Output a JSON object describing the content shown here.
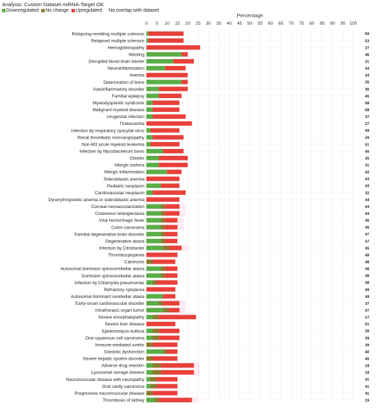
{
  "header": {
    "analysis_title": "Analysis: Custom Dataset miRNA-Target OK",
    "legend": [
      {
        "label": "Downregulated",
        "color": "#5aae46"
      },
      {
        "label": "No change",
        "color": "#8c7a2e"
      },
      {
        "label": "Upregulated",
        "color": "#e8413a"
      },
      {
        "label": "No overlap with dataset",
        "color": "#ffffff"
      }
    ]
  },
  "chart_data": {
    "type": "bar",
    "orientation": "horizontal",
    "stacked": true,
    "xlabel": "Percentage",
    "xlim": [
      0,
      100
    ],
    "xticks": [
      0,
      5,
      10,
      15,
      20,
      25,
      30,
      35,
      40,
      45,
      50,
      55,
      60,
      65,
      70,
      75,
      80,
      85,
      90,
      95,
      100
    ],
    "grid": true,
    "colors": {
      "down": "#5aae46",
      "nochange": "#8c7a2e",
      "up": "#e8413a",
      "highlight": "#fde8f3"
    },
    "rows": [
      {
        "label": "Relapsing-remitting multiple sclerosis",
        "down": 1,
        "nochange": 0,
        "up": 17,
        "count": "59"
      },
      {
        "label": "Relapsed multiple sclerosis",
        "down": 1,
        "nochange": 0,
        "up": 17,
        "count": "53"
      },
      {
        "label": "Hemoglobinopathy",
        "down": 0,
        "nochange": 0,
        "up": 26,
        "count": "27"
      },
      {
        "label": "Wasting",
        "down": 17,
        "nochange": 0,
        "up": 3,
        "count": "46"
      },
      {
        "label": "Disrupted blood brain barrier",
        "down": 13,
        "nochange": 0,
        "up": 10,
        "count": "31"
      },
      {
        "label": "Neuroinflammation",
        "down": 9,
        "nochange": 0,
        "up": 10,
        "count": "44"
      },
      {
        "label": "Anemia",
        "down": 0,
        "nochange": 0,
        "up": 20,
        "count": "34"
      },
      {
        "label": "Deterioration of bone",
        "down": 17,
        "nochange": 0,
        "up": 3,
        "count": "35"
      },
      {
        "label": "Autoinflammatory disorder",
        "down": 6,
        "nochange": 0,
        "up": 14,
        "count": "35"
      },
      {
        "label": "Familial epilepsy",
        "down": 6,
        "nochange": 0,
        "up": 11,
        "count": "46"
      },
      {
        "label": "Myelodysplastic syndrome",
        "down": 3,
        "nochange": 0,
        "up": 13,
        "count": "58"
      },
      {
        "label": "Malignant myeloid disease",
        "down": 3,
        "nochange": 0,
        "up": 13,
        "count": "58"
      },
      {
        "label": "Urogenital infection",
        "down": 3,
        "nochange": 0,
        "up": 16,
        "count": "37"
      },
      {
        "label": "Thalassemia",
        "down": 0,
        "nochange": 0,
        "up": 22,
        "count": "27"
      },
      {
        "label": "Infection by respiratory syncytial virus",
        "down": 2,
        "nochange": 0,
        "up": 14,
        "count": "49"
      },
      {
        "label": "Renal thrombotic microangiopathy",
        "down": 3,
        "nochange": 0,
        "up": 15,
        "count": "39"
      },
      {
        "label": "Non-M3 acute myeloid leukemia",
        "down": 2,
        "nochange": 0,
        "up": 14,
        "count": "51"
      },
      {
        "label": "Infection by Mycobacterium bovis",
        "down": 8,
        "nochange": 0,
        "up": 10,
        "count": "40"
      },
      {
        "label": "Osteitis",
        "down": 6,
        "nochange": 0,
        "up": 14,
        "count": "35"
      },
      {
        "label": "Allergic asthma",
        "down": 6,
        "nochange": 0,
        "up": 14,
        "count": "31"
      },
      {
        "label": "Allergic inflammation",
        "down": 10,
        "nochange": 0,
        "up": 7,
        "count": "42"
      },
      {
        "label": "Sideroblastic anemia",
        "down": 0,
        "nochange": 0,
        "up": 16,
        "count": "43"
      },
      {
        "label": "Pediatric neoplasm",
        "down": 7,
        "nochange": 0,
        "up": 9,
        "count": "43"
      },
      {
        "label": "Cardiovascular neoplasm",
        "down": 3,
        "nochange": 0,
        "up": 16,
        "count": "32"
      },
      {
        "label": "Dyserythropoietic anemia or sideroblastic anemia",
        "down": 0,
        "nochange": 0,
        "up": 16,
        "count": "44"
      },
      {
        "label": "Corneal neovascularization",
        "down": 7,
        "nochange": 2,
        "up": 7,
        "count": "44",
        "highlight": true
      },
      {
        "label": "Cutaneous telangiectasia",
        "down": 7,
        "nochange": 2,
        "up": 7,
        "count": "44",
        "highlight": true
      },
      {
        "label": "Viral hemorrhagic fever",
        "down": 7,
        "nochange": 2,
        "up": 6,
        "count": "45",
        "highlight": true
      },
      {
        "label": "Colon carcinoma",
        "down": 7,
        "nochange": 2,
        "up": 6,
        "count": "45",
        "highlight": true
      },
      {
        "label": "Familial degenerative brain disorder",
        "down": 7,
        "nochange": 2,
        "up": 6,
        "count": "47"
      },
      {
        "label": "Degenerative ataxia",
        "down": 7,
        "nochange": 2,
        "up": 6,
        "count": "47"
      },
      {
        "label": "Infection by Citrobacter",
        "down": 8,
        "nochange": 3,
        "up": 6,
        "count": "36",
        "highlight": true
      },
      {
        "label": "Thrombocytopenia",
        "down": 0,
        "nochange": 0,
        "up": 15,
        "count": "48"
      },
      {
        "label": "Calcinosis",
        "down": 0,
        "nochange": 3,
        "up": 11,
        "count": "48"
      },
      {
        "label": "Autosomal dominant spinocerebellar ataxia",
        "down": 7,
        "nochange": 2,
        "up": 6,
        "count": "48"
      },
      {
        "label": "Dominant spinocerebellar ataxia",
        "down": 7,
        "nochange": 2,
        "up": 6,
        "count": "48"
      },
      {
        "label": "Infection by Chlamydia pneumoniae",
        "down": 3,
        "nochange": 2,
        "up": 10,
        "count": "48"
      },
      {
        "label": "Refractory cytopenia",
        "down": 0,
        "nochange": 0,
        "up": 14,
        "count": "49"
      },
      {
        "label": "Autosomal dominant cerebellar ataxia",
        "down": 8,
        "nochange": 0,
        "up": 6,
        "count": "49"
      },
      {
        "label": "Early-onset cardiovascular disorder",
        "down": 6,
        "nochange": 2,
        "up": 8,
        "count": "37",
        "highlight": true
      },
      {
        "label": "Intrathoracic organ tumor",
        "down": 8,
        "nochange": 3,
        "up": 5,
        "count": "37",
        "highlight": true
      },
      {
        "label": "Severe encephalopathy",
        "down": 3,
        "nochange": 3,
        "up": 18,
        "count": "17"
      },
      {
        "label": "Severe liver disease",
        "down": 0,
        "nochange": 0,
        "up": 14,
        "count": "51"
      },
      {
        "label": "Epidermolysis bullosa",
        "down": 3,
        "nochange": 3,
        "up": 10,
        "count": "39"
      },
      {
        "label": "Oral squamous cell carcinoma",
        "down": 3,
        "nochange": 3,
        "up": 10,
        "count": "39"
      },
      {
        "label": "Immune-mediated uveitis",
        "down": 0,
        "nochange": 3,
        "up": 12,
        "count": "39"
      },
      {
        "label": "Diastolic dysfunction",
        "down": 8,
        "nochange": 2,
        "up": 5,
        "count": "40"
      },
      {
        "label": "Severe hepatic system disorder",
        "down": 0,
        "nochange": 3,
        "up": 12,
        "count": "40"
      },
      {
        "label": "Adverse drug reaction",
        "down": 3,
        "nochange": 4,
        "up": 16,
        "count": "18",
        "highlight": true
      },
      {
        "label": "Lysosomal storage disease",
        "down": 3,
        "nochange": 4,
        "up": 16,
        "count": "18",
        "highlight": true
      },
      {
        "label": "Neuromuscular disease with neuropathy",
        "down": 2,
        "nochange": 3,
        "up": 10,
        "count": "41"
      },
      {
        "label": "Oral cavity carcinoma",
        "down": 2,
        "nochange": 3,
        "up": 10,
        "count": "41"
      },
      {
        "label": "Progressive neuromuscular disease",
        "down": 0,
        "nochange": 3,
        "up": 12,
        "count": "41"
      },
      {
        "label": "Thrombosis of kidney",
        "down": 4,
        "nochange": 2,
        "up": 16,
        "count": "19",
        "highlight": true
      }
    ]
  }
}
